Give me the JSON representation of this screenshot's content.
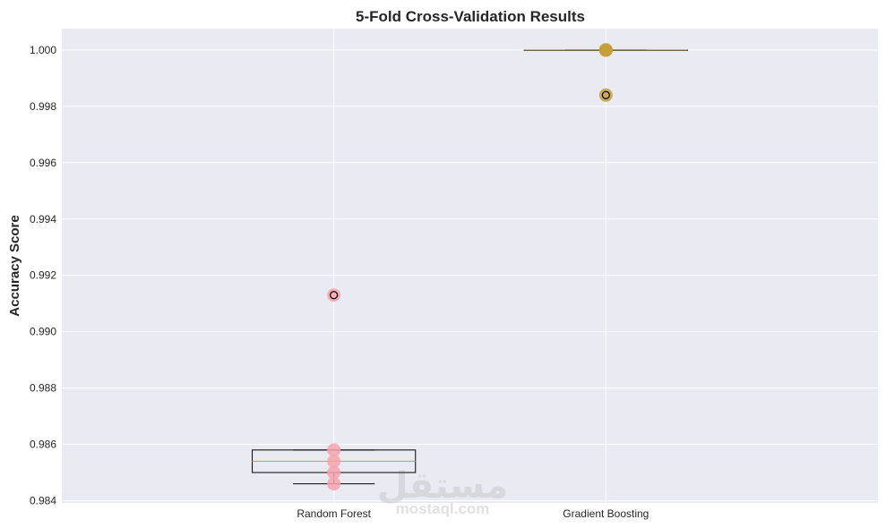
{
  "chart_data": {
    "type": "box",
    "title": "5-Fold Cross-Validation Results",
    "xlabel": "",
    "ylabel": "Accuracy Score",
    "ylim": [
      0.98392,
      1.00076
    ],
    "yticks": [
      0.984,
      0.986,
      0.988,
      0.99,
      0.992,
      0.994,
      0.996,
      0.998,
      1.0
    ],
    "ytick_labels": [
      "0.984",
      "0.986",
      "0.988",
      "0.990",
      "0.992",
      "0.994",
      "0.996",
      "0.998",
      "1.000"
    ],
    "categories": [
      "Random Forest",
      "Gradient Boosting"
    ],
    "grid": true,
    "boxes": [
      {
        "name": "Random Forest",
        "q1": 0.985,
        "median": 0.9854,
        "q3": 0.9858,
        "whisker_low": 0.9846,
        "whisker_high": 0.9858,
        "outliers": [
          0.9913
        ],
        "color": "#f4a3ae"
      },
      {
        "name": "Gradient Boosting",
        "q1": 1.0,
        "median": 1.0,
        "q3": 1.0,
        "whisker_low": 1.0,
        "whisker_high": 1.0,
        "outliers": [
          0.9984
        ],
        "color": "#c69f3a"
      }
    ],
    "points": [
      {
        "category": "Random Forest",
        "values": [
          0.9846,
          0.985,
          0.9854,
          0.9858,
          0.9913
        ]
      },
      {
        "category": "Gradient Boosting",
        "values": [
          1.0,
          1.0,
          1.0,
          1.0,
          0.9984
        ]
      }
    ]
  },
  "watermark": {
    "arabic": "مستقل",
    "latin": "mostaql.com"
  },
  "colors": {
    "plot_bg": "#eaeaf2",
    "grid": "#ffffff",
    "median": "#c0a864"
  }
}
